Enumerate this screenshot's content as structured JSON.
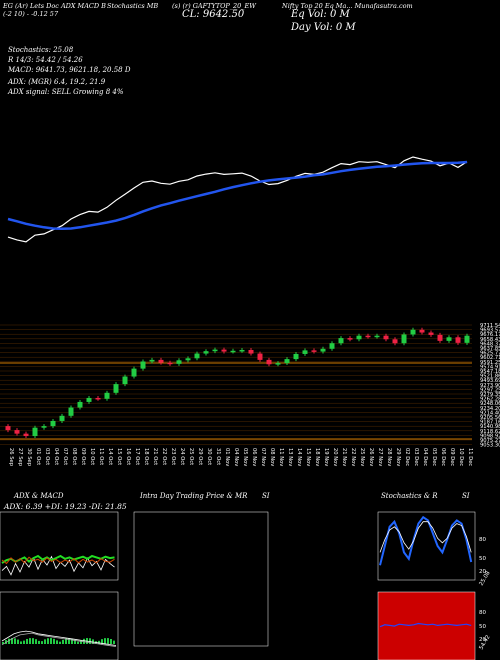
{
  "header": {
    "items": [
      "EG (Ar) Lets Doc ADX MACD B",
      "Stochastics MB",
      "(s) (r) GAFTYTOP_20_EW",
      "Nifty Top 20 Eq Ma... Munafasutra.com"
    ],
    "change_line": "(-2   10) -    -0.12 57",
    "close_label": "CL: 9642.50",
    "eq_label": "Eq Vol: 0   M",
    "day_label": "Day Vol: 0   M"
  },
  "indicators": {
    "stoch": "Stochastics: 25.08",
    "r": "R   14/3: 54.42 / 54.26",
    "macd": "MACD: 9641.73, 9621.18, 20.58  D",
    "adx": "ADX:                (MGR) 6.4,  19.2,  21.9",
    "signal": "ADX  signal: SELL Growing 8 4%"
  },
  "colors": {
    "bg": "#000000",
    "up": "#22cc44",
    "down": "#ee2244",
    "ema": "#2255ee",
    "price": "#ffffff",
    "orange": "#cc7700",
    "grid": "#663300"
  },
  "chart_data": {
    "type": "candlestick",
    "price_levels": [
      "9711.54",
      "9693.57",
      "9676.17",
      "9658.43",
      "9648.37",
      "9637.85",
      "9625.77",
      "9602.71",
      "9591.25",
      "9574.91",
      "9547.18",
      "9521.86",
      "9493.69",
      "9273.90",
      "9297.25",
      "9279.35",
      "9262.28",
      "9248.06",
      "9234.20",
      "9214.40",
      "9205.56",
      "9187.16",
      "9140.98",
      "9118.62",
      "9098.92",
      "9075.27",
      "9053.30"
    ],
    "dates": [
      "26 Sep",
      "27 Sep",
      "30 Sep",
      "01 Oct",
      "03 Oct",
      "04 Oct",
      "07 Oct",
      "08 Oct",
      "09 Oct",
      "10 Oct",
      "11 Oct",
      "14 Oct",
      "15 Oct",
      "16 Oct",
      "17 Oct",
      "18 Oct",
      "21 Oct",
      "22 Oct",
      "23 Oct",
      "24 Oct",
      "25 Oct",
      "29 Oct",
      "30 Oct",
      "31 Oct",
      "01 Nov",
      "04 Nov",
      "05 Nov",
      "06 Nov",
      "07 Nov",
      "08 Nov",
      "11 Nov",
      "13 Nov",
      "14 Nov",
      "15 Nov",
      "18 Nov",
      "19 Nov",
      "20 Nov",
      "21 Nov",
      "22 Nov",
      "25 Nov",
      "26 Nov",
      "27 Nov",
      "28 Nov",
      "29 Nov",
      "02 Dec",
      "03 Dec",
      "04 Dec",
      "05 Dec",
      "06 Dec",
      "09 Dec",
      "10 Dec",
      "11 Dec"
    ],
    "close": [
      9405,
      9396,
      9390,
      9411,
      9415,
      9428,
      9441,
      9462,
      9476,
      9486,
      9484,
      9499,
      9521,
      9540,
      9560,
      9578,
      9582,
      9575,
      9572,
      9581,
      9586,
      9598,
      9604,
      9608,
      9603,
      9605,
      9607,
      9598,
      9582,
      9571,
      9574,
      9584,
      9597,
      9606,
      9603,
      9610,
      9624,
      9637,
      9634,
      9643,
      9641,
      9643,
      9634,
      9624,
      9646,
      9658,
      9651,
      9645,
      9630,
      9639,
      9625,
      9643
    ],
    "ema": [
      9462,
      9455,
      9447,
      9441,
      9436,
      9432,
      9431,
      9432,
      9436,
      9441,
      9446,
      9451,
      9457,
      9465,
      9475,
      9486,
      9496,
      9505,
      9512,
      9520,
      9527,
      9534,
      9541,
      9548,
      9556,
      9563,
      9569,
      9575,
      9580,
      9584,
      9587,
      9590,
      9593,
      9596,
      9600,
      9603,
      9608,
      9613,
      9617,
      9621,
      9624,
      9627,
      9629,
      9631,
      9634,
      9636,
      9638,
      9639,
      9639,
      9639,
      9640,
      9642
    ]
  },
  "panels": {
    "adx_title": "ADX  & MACD",
    "adx_values": "ADX: 6.39  +DI: 19.23  -DI: 21.85",
    "intra_title": "Intra  Day Trading Price  & MR",
    "intra_si": "SI",
    "stoch_title": "Stochastics & R",
    "stoch_si": "SI",
    "stoch_ticks": [
      "80",
      "50",
      "20"
    ],
    "stoch_val": "25.08",
    "rsi_ticks": [
      "80",
      "50",
      "20"
    ],
    "rsi_val": "54.42"
  }
}
